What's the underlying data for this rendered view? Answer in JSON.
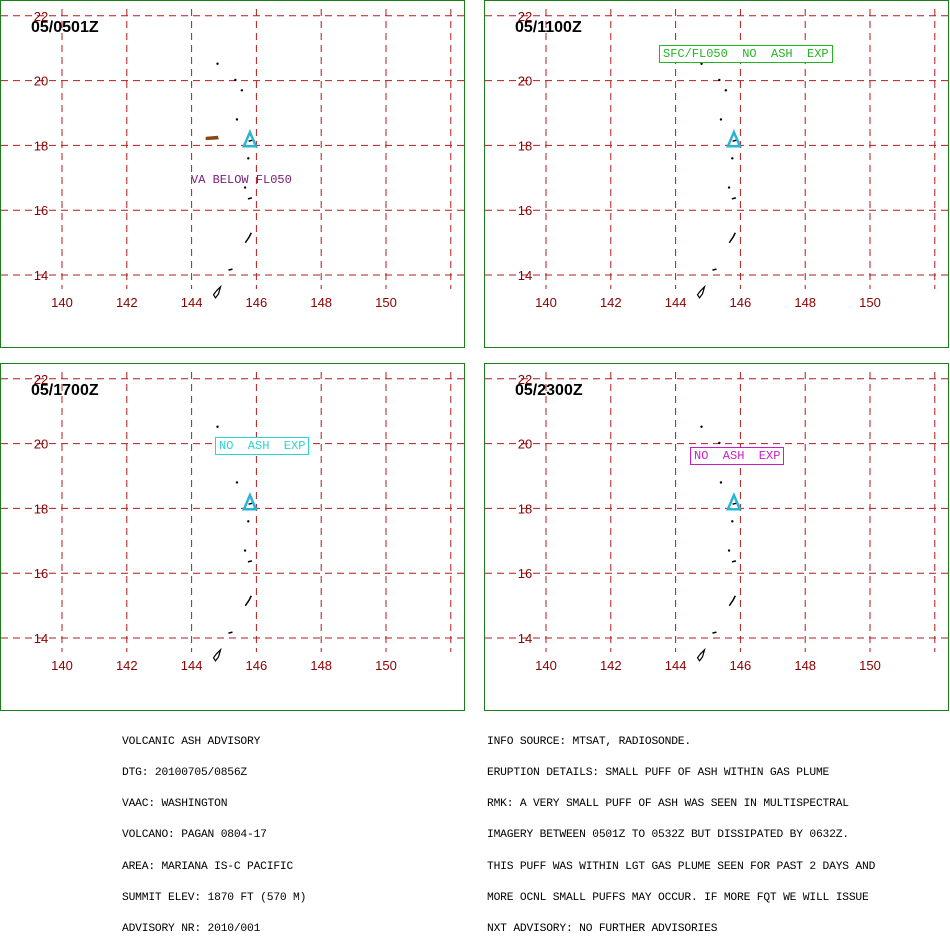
{
  "panels": [
    {
      "time": "05/0501Z",
      "annotation": "VA BELOW FL050",
      "annotation_color": "#7a1a7a",
      "annotation_boxed": false,
      "ash_area": true
    },
    {
      "time": "05/1100Z",
      "annotation": "SFC/FL050  NO  ASH  EXP",
      "annotation_color": "#22b422",
      "annotation_boxed": true,
      "ash_area": false
    },
    {
      "time": "05/1700Z",
      "annotation": "NO  ASH  EXP",
      "annotation_color": "#2ad4d4",
      "annotation_boxed": true,
      "ash_area": false
    },
    {
      "time": "05/2300Z",
      "annotation": "NO  ASH  EXP",
      "annotation_color": "#c81ec8",
      "annotation_boxed": true,
      "ash_area": false
    }
  ],
  "map": {
    "lon_ticks": [
      "140",
      "142",
      "144",
      "146",
      "148",
      "150"
    ],
    "lat_ticks": [
      "14",
      "16",
      "18",
      "20",
      "22"
    ],
    "volcano_lat": 18.13,
    "volcano_lon": 145.8,
    "grid_color": "#b01c1c",
    "label_color": "#8b0000",
    "volcano_color": "#2ab4d4"
  },
  "advisory_left": [
    "VOLCANIC ASH ADVISORY",
    "DTG: 20100705/0856Z",
    "VAAC: WASHINGTON",
    "VOLCANO: PAGAN 0804-17",
    "AREA: MARIANA IS-C PACIFIC",
    "SUMMIT ELEV: 1870 FT (570 M)",
    "ADVISORY NR: 2010/001"
  ],
  "advisory_right": [
    "INFO SOURCE: MTSAT, RADIOSONDE.",
    "ERUPTION DETAILS: SMALL PUFF OF ASH WITHIN GAS PLUME",
    "RMK: A VERY SMALL PUFF OF ASH WAS SEEN IN MULTISPECTRAL",
    "IMAGERY BETWEEN 0501Z TO 0532Z BUT DISSIPATED BY 0632Z.",
    "THIS PUFF WAS WITHIN LGT GAS PLUME SEEN FOR PAST 2 DAYS AND",
    "MORE OCNL SMALL PUFFS MAY OCCUR. IF MORE FQT WE WILL ISSUE",
    "NXT ADVISORY: NO FURTHER ADVISORIES"
  ]
}
